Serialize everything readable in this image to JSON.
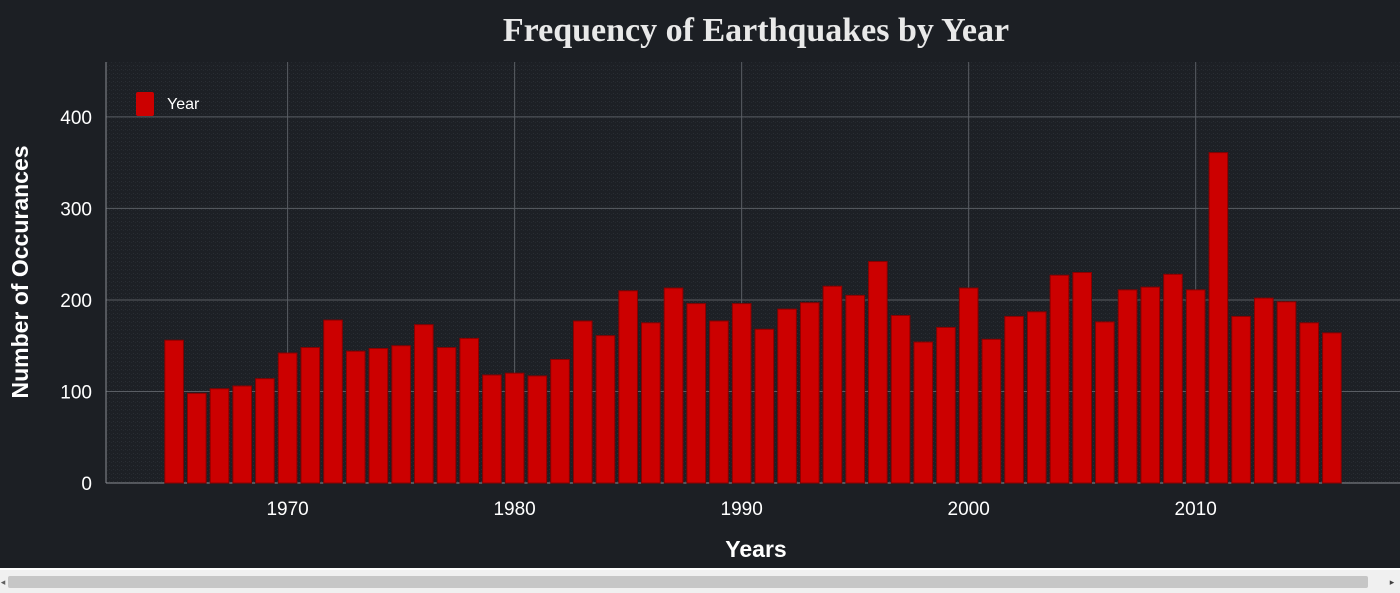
{
  "chart_data": {
    "type": "bar",
    "title": "Frequency of Earthquakes by Year",
    "xlabel": "Years",
    "ylabel": "Number of Occurances",
    "legend": {
      "label": "Year",
      "placement": "top-left"
    },
    "grid": true,
    "xlim": [
      1962,
      2019
    ],
    "ylim": [
      0,
      460
    ],
    "xticks": [
      1970,
      1980,
      1990,
      2000,
      2010
    ],
    "yticks": [
      0,
      100,
      200,
      300,
      400
    ],
    "bar_color": "#cc0000",
    "background_color": "#1c1f24",
    "x": [
      1965,
      1966,
      1967,
      1968,
      1969,
      1970,
      1971,
      1972,
      1973,
      1974,
      1975,
      1976,
      1977,
      1978,
      1979,
      1980,
      1981,
      1982,
      1983,
      1984,
      1985,
      1986,
      1987,
      1988,
      1989,
      1990,
      1991,
      1992,
      1993,
      1994,
      1995,
      1996,
      1997,
      1998,
      1999,
      2000,
      2001,
      2002,
      2003,
      2004,
      2005,
      2006,
      2007,
      2008,
      2009,
      2010,
      2011,
      2012,
      2013,
      2014,
      2015,
      2016
    ],
    "values": [
      156,
      98,
      103,
      106,
      114,
      142,
      148,
      178,
      144,
      147,
      150,
      173,
      148,
      158,
      118,
      120,
      117,
      135,
      177,
      161,
      210,
      175,
      213,
      196,
      177,
      196,
      168,
      190,
      197,
      215,
      205,
      242,
      183,
      154,
      170,
      213,
      157,
      182,
      187,
      227,
      230,
      176,
      211,
      214,
      228,
      211,
      361,
      182,
      202,
      198,
      175,
      164
    ]
  },
  "scrollbar": {
    "left_arrow": "◂",
    "right_arrow": "▸"
  }
}
